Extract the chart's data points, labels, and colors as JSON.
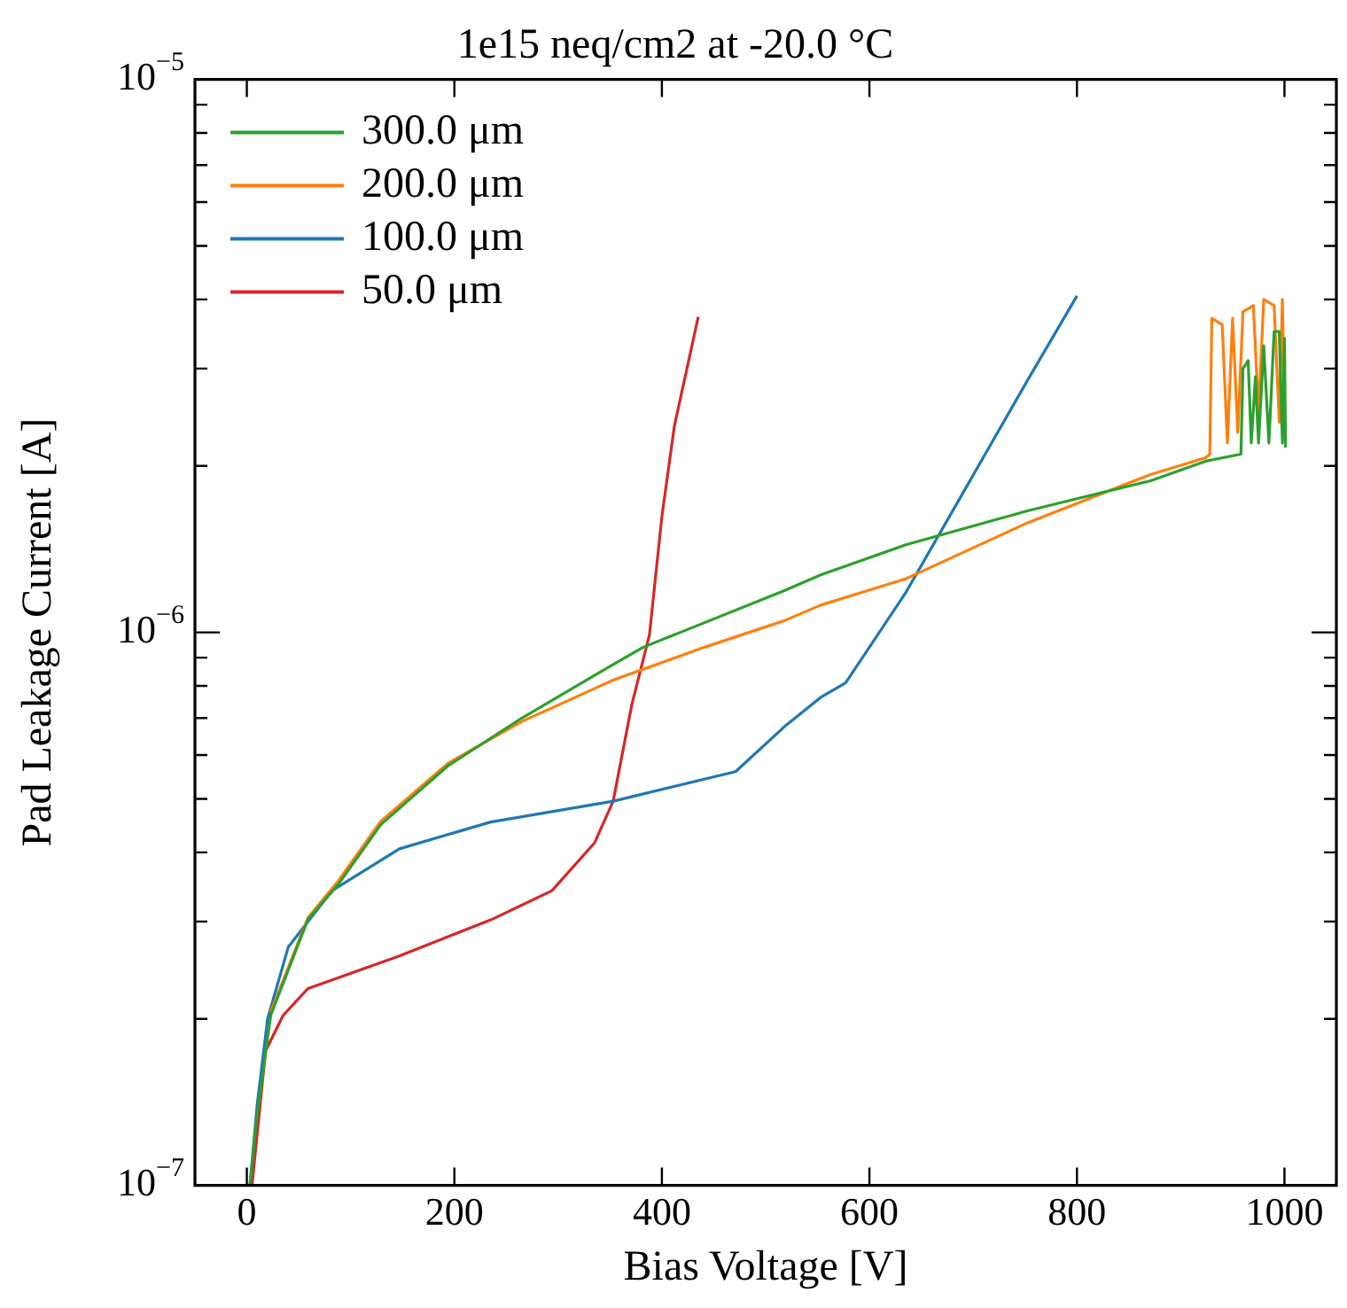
{
  "chart_data": {
    "type": "line",
    "title": "1e15 neq/cm2 at -20.0 °C",
    "xlabel": "Bias Voltage [V]",
    "ylabel": "Pad Leakage Current [A]",
    "xlim": [
      -50,
      1050
    ],
    "xticks": [
      0,
      200,
      400,
      600,
      800,
      1000
    ],
    "ylim": [
      1e-07,
      1e-05
    ],
    "log": "y",
    "yticks": [
      {
        "value": 1e-07,
        "label": "10$^{−7}$"
      },
      {
        "value": 2e-07,
        "label": null
      },
      {
        "value": 3e-07,
        "label": null
      },
      {
        "value": 4e-07,
        "label": null
      },
      {
        "value": 5e-07,
        "label": null
      },
      {
        "value": 6e-07,
        "label": null
      },
      {
        "value": 7e-07,
        "label": null
      },
      {
        "value": 8e-07,
        "label": null
      },
      {
        "value": 9e-07,
        "label": null
      },
      {
        "value": 1e-06,
        "label": "10$^{−6}$"
      },
      {
        "value": 2e-06,
        "label": null
      },
      {
        "value": 3e-06,
        "label": null
      },
      {
        "value": 4e-06,
        "label": null
      },
      {
        "value": 5e-06,
        "label": null
      },
      {
        "value": 6e-06,
        "label": null
      },
      {
        "value": 7e-06,
        "label": null
      },
      {
        "value": 8e-06,
        "label": null
      },
      {
        "value": 9e-06,
        "label": null
      },
      {
        "value": 1e-05,
        "label": "10$^{−5}$"
      }
    ],
    "grid": false,
    "legend": "top left",
    "marker": "none",
    "line_style": "solid",
    "series": [
      {
        "name": "300.0 μm",
        "color": "#2ca02c",
        "x": [
          3,
          9,
          23,
          59,
          88,
          129,
          194,
          265,
          353,
          382,
          518,
          553,
          635,
          753,
          871,
          924,
          958,
          960,
          965,
          968,
          972,
          975,
          980,
          985,
          990,
          995,
          998,
          1000,
          1001
        ],
        "values": [
          1e-07,
          1.3e-07,
          2.03e-07,
          3.03e-07,
          3.5e-07,
          4.49e-07,
          5.74e-07,
          7e-07,
          8.75e-07,
          9.4e-07,
          1.19e-06,
          1.27e-06,
          1.44e-06,
          1.66e-06,
          1.88e-06,
          2.04e-06,
          2.1e-06,
          3e-06,
          3.1e-06,
          2.2e-06,
          2.9e-06,
          2.2e-06,
          3.3e-06,
          2.2e-06,
          3.5e-06,
          3.5e-06,
          2.2e-06,
          3.4e-06,
          2.16e-06
        ]
      },
      {
        "name": "200.0 μm",
        "color": "#ff7f0e",
        "x": [
          23,
          59,
          88,
          129,
          194,
          265,
          294,
          353,
          441,
          518,
          553,
          635,
          753,
          871,
          924,
          928,
          930,
          940,
          945,
          950,
          955,
          960,
          970,
          975,
          980,
          990,
          995,
          998,
          1000
        ],
        "values": [
          2.06e-07,
          3.05e-07,
          3.55e-07,
          4.55e-07,
          5.8e-07,
          6.9e-07,
          7.3e-07,
          8.2e-07,
          9.4e-07,
          1.05e-06,
          1.12e-06,
          1.25e-06,
          1.58e-06,
          1.93e-06,
          2.07e-06,
          2.1e-06,
          3.7e-06,
          3.6e-06,
          2.2e-06,
          3.7e-06,
          2.3e-06,
          3.8e-06,
          3.9e-06,
          2.5e-06,
          4e-06,
          3.9e-06,
          2.4e-06,
          4e-06,
          2.5e-06
        ]
      },
      {
        "name": "100.0 μm",
        "color": "#1f77b4",
        "x": [
          3,
          10,
          20,
          40,
          82,
          147,
          235,
          353,
          471,
          518,
          553,
          577,
          635,
          694,
          753,
          800
        ],
        "values": [
          1e-07,
          1.4e-07,
          2e-07,
          2.7e-07,
          3.41e-07,
          4.06e-07,
          4.54e-07,
          4.95e-07,
          5.6e-07,
          6.75e-07,
          7.63e-07,
          8.1e-07,
          1.18e-06,
          1.84e-06,
          2.87e-06,
          4.06e-06
        ]
      },
      {
        "name": "50.0 μm",
        "color": "#d62728",
        "x": [
          5,
          18,
          35,
          59,
          147,
          235,
          294,
          335,
          353,
          371,
          388,
          400,
          412,
          435
        ],
        "values": [
          1e-07,
          1.75e-07,
          2.03e-07,
          2.27e-07,
          2.6e-07,
          3.02e-07,
          3.41e-07,
          4.16e-07,
          4.95e-07,
          7.4e-07,
          9.9e-07,
          1.62e-06,
          2.36e-06,
          3.72e-06
        ]
      }
    ]
  }
}
